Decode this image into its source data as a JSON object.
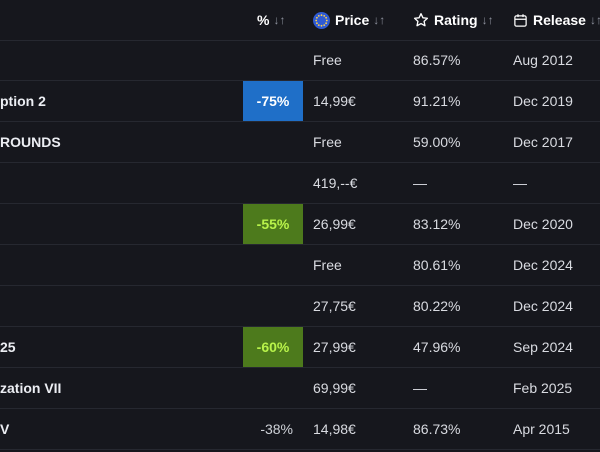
{
  "header": {
    "percent_label": "%",
    "price_label": "Price",
    "rating_label": "Rating",
    "release_label": "Release",
    "sort_glyph": "↓↑",
    "price_icon": "eu-stars-icon",
    "rating_icon": "star-outline-icon",
    "release_icon": "calendar-icon"
  },
  "colors": {
    "background": "#16171d",
    "discount_blue": "#1f6fc8",
    "discount_green_bg": "#4d7a1c",
    "discount_green_text": "#b8f34a"
  },
  "rows": [
    {
      "name": "",
      "discount": "",
      "discount_style": "none",
      "price": "Free",
      "rating": "86.57%",
      "release": "Aug 2012"
    },
    {
      "name": "ption 2",
      "discount": "-75%",
      "discount_style": "blue",
      "price": "14,99€",
      "rating": "91.21%",
      "release": "Dec 2019"
    },
    {
      "name": "ROUNDS",
      "discount": "",
      "discount_style": "none",
      "price": "Free",
      "rating": "59.00%",
      "release": "Dec 2017"
    },
    {
      "name": "",
      "discount": "",
      "discount_style": "none",
      "price": "419,--€",
      "rating": "—",
      "release": "—"
    },
    {
      "name": "",
      "discount": "-55%",
      "discount_style": "green",
      "price": "26,99€",
      "rating": "83.12%",
      "release": "Dec 2020"
    },
    {
      "name": "",
      "discount": "",
      "discount_style": "none",
      "price": "Free",
      "rating": "80.61%",
      "release": "Dec 2024"
    },
    {
      "name": "",
      "discount": "",
      "discount_style": "none",
      "price": "27,75€",
      "rating": "80.22%",
      "release": "Dec 2024"
    },
    {
      "name": "25",
      "discount": "-60%",
      "discount_style": "green",
      "price": "27,99€",
      "rating": "47.96%",
      "release": "Sep 2024"
    },
    {
      "name": "zation VII",
      "discount": "",
      "discount_style": "none",
      "price": "69,99€",
      "rating": "—",
      "release": "Feb 2025"
    },
    {
      "name": "V",
      "discount": "-38%",
      "discount_style": "plain",
      "price": "14,98€",
      "rating": "86.73%",
      "release": "Apr 2015"
    }
  ]
}
